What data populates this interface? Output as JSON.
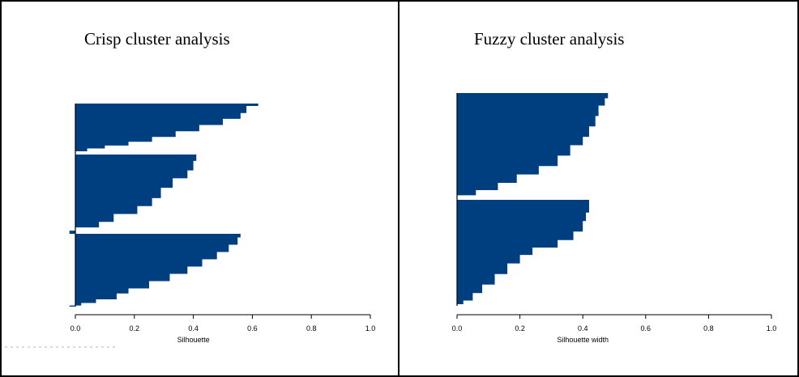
{
  "panels": [
    {
      "title": "Crisp cluster analysis"
    },
    {
      "title": "Fuzzy cluster analysis"
    }
  ],
  "colors": {
    "bar": "#003f7f",
    "axis": "#000000",
    "frame": "#000000"
  },
  "chart_data": [
    {
      "type": "bar",
      "orientation": "horizontal",
      "title": "Crisp cluster analysis",
      "xlabel": "Silhouette",
      "xlim": [
        0,
        1.0
      ],
      "x_ticks": [
        "0.0",
        "0.2",
        "0.4",
        "0.6",
        "0.8",
        "1.0"
      ],
      "x_tick_values": [
        0,
        0.2,
        0.4,
        0.6,
        0.8,
        1.0
      ],
      "clusters": [
        {
          "profile": [
            [
              0,
              0.62
            ],
            [
              0.05,
              0.58
            ],
            [
              0.1,
              0.58
            ],
            [
              0.2,
              0.56
            ],
            [
              0.32,
              0.5
            ],
            [
              0.45,
              0.42
            ],
            [
              0.58,
              0.34
            ],
            [
              0.7,
              0.26
            ],
            [
              0.8,
              0.18
            ],
            [
              0.88,
              0.1
            ],
            [
              0.94,
              0.04
            ],
            [
              1.0,
              0.0
            ]
          ]
        },
        {
          "profile": [
            [
              0,
              0.41
            ],
            [
              0.08,
              0.4
            ],
            [
              0.2,
              0.38
            ],
            [
              0.3,
              0.33
            ],
            [
              0.42,
              0.29
            ],
            [
              0.55,
              0.26
            ],
            [
              0.65,
              0.21
            ],
            [
              0.75,
              0.13
            ],
            [
              0.85,
              0.08
            ],
            [
              0.92,
              0.0
            ],
            [
              0.96,
              -0.02
            ],
            [
              1.0,
              -0.04
            ]
          ]
        },
        {
          "profile": [
            [
              0,
              0.56
            ],
            [
              0.05,
              0.55
            ],
            [
              0.15,
              0.52
            ],
            [
              0.25,
              0.48
            ],
            [
              0.35,
              0.43
            ],
            [
              0.45,
              0.38
            ],
            [
              0.55,
              0.32
            ],
            [
              0.65,
              0.25
            ],
            [
              0.75,
              0.18
            ],
            [
              0.82,
              0.14
            ],
            [
              0.9,
              0.07
            ],
            [
              0.95,
              0.02
            ],
            [
              0.985,
              -0.02
            ],
            [
              1.0,
              -0.14
            ]
          ]
        }
      ]
    },
    {
      "type": "bar",
      "orientation": "horizontal",
      "title": "Fuzzy cluster analysis",
      "xlabel": "Silhouette width",
      "xlim": [
        0,
        1.0
      ],
      "x_ticks": [
        "0.0",
        "0.2",
        "0.4",
        "0.6",
        "0.8",
        "1.0"
      ],
      "x_tick_values": [
        0,
        0.2,
        0.4,
        0.6,
        0.8,
        1.0
      ],
      "clusters": [
        {
          "profile": [
            [
              0,
              0.48
            ],
            [
              0.05,
              0.47
            ],
            [
              0.12,
              0.45
            ],
            [
              0.22,
              0.44
            ],
            [
              0.32,
              0.42
            ],
            [
              0.42,
              0.4
            ],
            [
              0.5,
              0.36
            ],
            [
              0.6,
              0.32
            ],
            [
              0.7,
              0.26
            ],
            [
              0.78,
              0.19
            ],
            [
              0.86,
              0.13
            ],
            [
              0.93,
              0.06
            ],
            [
              0.98,
              0.0
            ],
            [
              1.0,
              -0.03
            ]
          ]
        },
        {
          "profile": [
            [
              0,
              0.42
            ],
            [
              0.05,
              0.42
            ],
            [
              0.12,
              0.41
            ],
            [
              0.2,
              0.4
            ],
            [
              0.3,
              0.37
            ],
            [
              0.38,
              0.32
            ],
            [
              0.45,
              0.24
            ],
            [
              0.52,
              0.2
            ],
            [
              0.6,
              0.16
            ],
            [
              0.7,
              0.12
            ],
            [
              0.8,
              0.08
            ],
            [
              0.88,
              0.05
            ],
            [
              0.95,
              0.02
            ],
            [
              0.985,
              0.0
            ],
            [
              1.0,
              -0.07
            ]
          ]
        }
      ]
    }
  ]
}
